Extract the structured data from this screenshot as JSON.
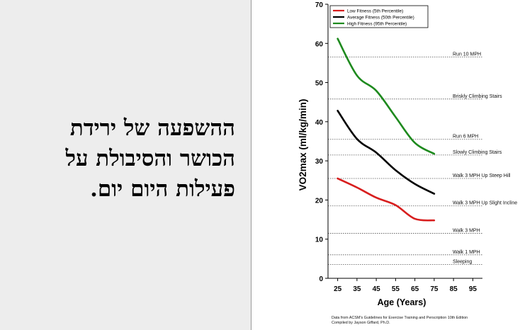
{
  "slide": {
    "title_lines": [
      "ההשפעה של ירידת",
      "הכושר והסיבולת על",
      "פעילות היום יום."
    ]
  },
  "chart_data": {
    "type": "line",
    "xlabel": "Age (Years)",
    "ylabel": "VO2max (ml/kg/min)",
    "xlim": [
      20,
      100
    ],
    "ylim": [
      0,
      70
    ],
    "xticks": [
      25,
      35,
      45,
      55,
      65,
      75,
      85,
      95
    ],
    "yticks": [
      0,
      10,
      20,
      30,
      40,
      50,
      60,
      70
    ],
    "legend_position": "top-left",
    "series": [
      {
        "name": "Low Fitness (5th Percentile)",
        "color": "#d81e1e",
        "x": [
          25,
          35,
          45,
          55,
          65,
          75
        ],
        "y": [
          25.5,
          23.2,
          20.6,
          18.7,
          15.2,
          14.8
        ]
      },
      {
        "name": "Average Fitness (50th Percentile)",
        "color": "#000000",
        "x": [
          25,
          35,
          45,
          55,
          65,
          75
        ],
        "y": [
          42.8,
          35.6,
          32.1,
          27.6,
          24.1,
          21.6
        ]
      },
      {
        "name": "High Fitness (95th Percentile)",
        "color": "#1e8a1e",
        "x": [
          25,
          35,
          45,
          55,
          65,
          75
        ],
        "y": [
          61.2,
          51.8,
          47.9,
          41.2,
          34.6,
          31.8
        ]
      }
    ],
    "reference_lines": [
      {
        "label": "Run 10 MPH",
        "y": 56.5
      },
      {
        "label": "Briskly Climbing Stairs",
        "y": 45.8
      },
      {
        "label": "Run 6 MPH",
        "y": 35.5
      },
      {
        "label": "Slowly Climbing Stairs",
        "y": 31.5
      },
      {
        "label": "Walk 3 MPH Up Steep Hill",
        "y": 25.5
      },
      {
        "label": "Walk 3 MPH Up Slight Incline",
        "y": 18.5
      },
      {
        "label": "Walk 3 MPH",
        "y": 11.5
      },
      {
        "label": "Walk 1 MPH",
        "y": 6.0
      },
      {
        "label": "Sleeping",
        "y": 3.5
      }
    ],
    "source_lines": [
      "Data from ACSM's Guidelines for Exercise Training and Perscription 10th Edition",
      "Compiled by Jayson Giffard, Ph.D."
    ]
  }
}
